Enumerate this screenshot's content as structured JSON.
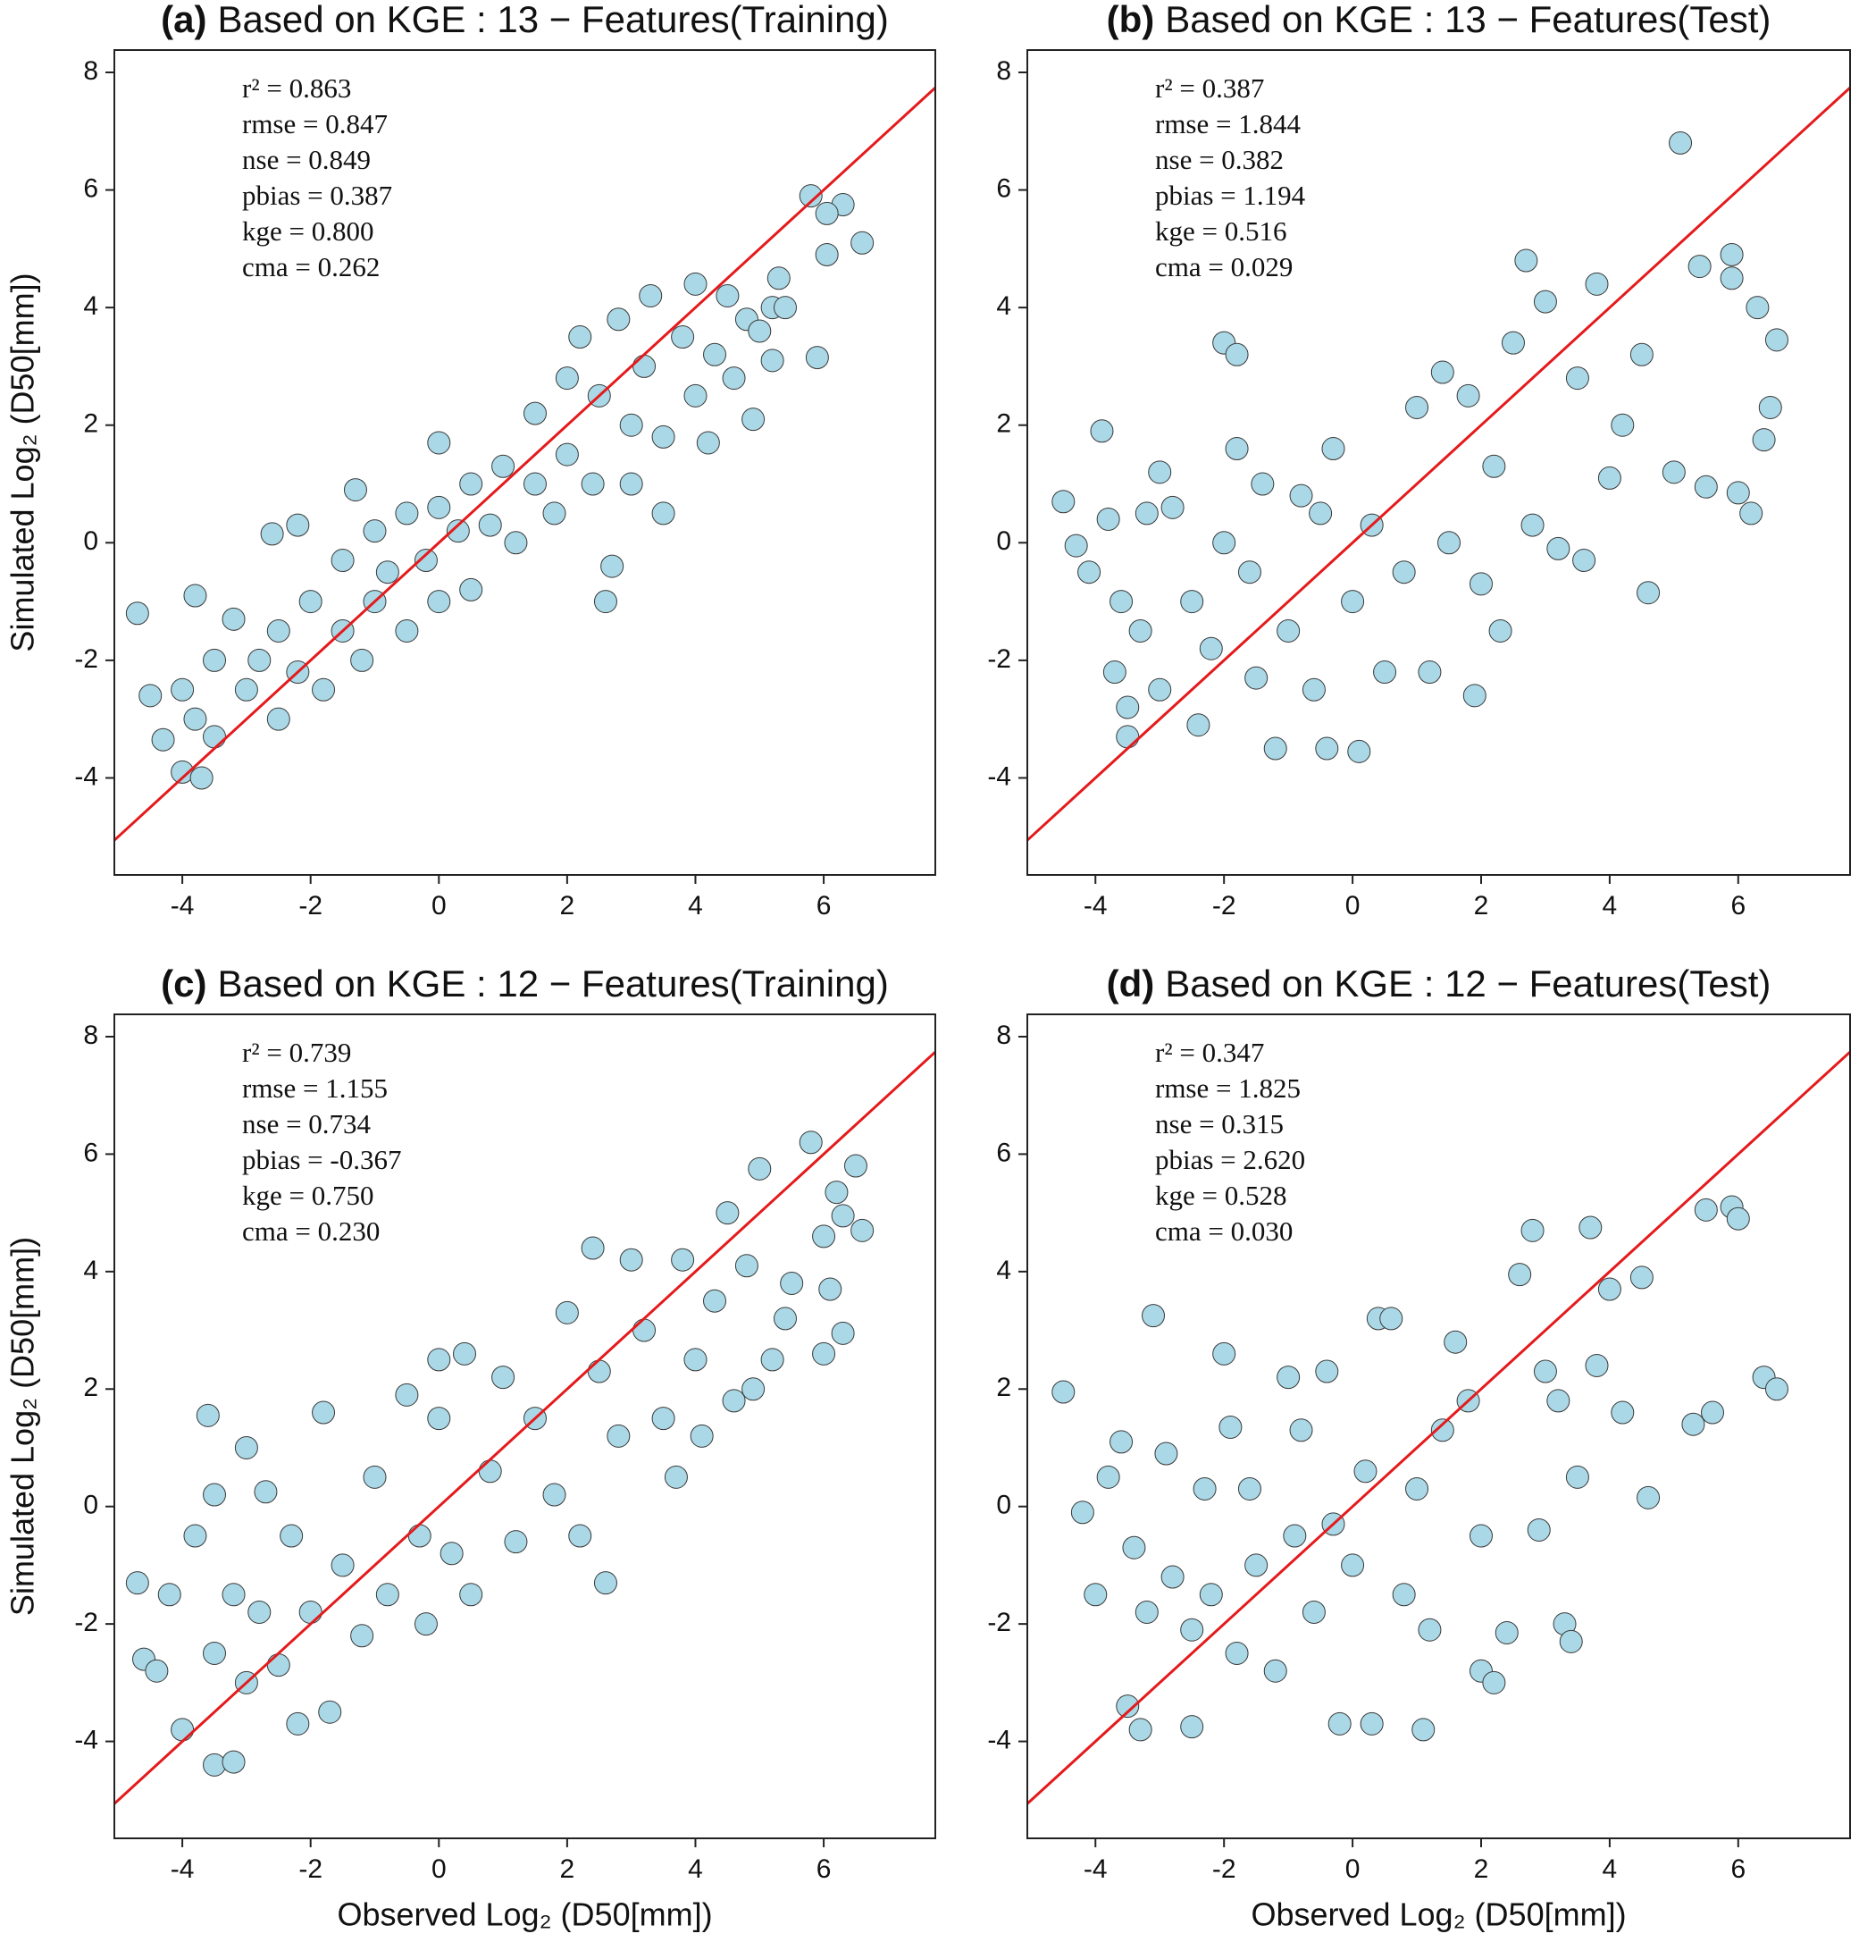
{
  "chart_data": [
    {
      "type": "scatter",
      "panel_label": "(a)",
      "title": "Based on KGE :  13 − Features(Training)",
      "ylabel": "Simulated Log₂ (D50[mm])",
      "annotations": [
        "r² = 0.863",
        "rmse = 0.847",
        "nse = 0.849",
        "pbias = 0.387",
        "kge = 0.800",
        "cma = 0.262"
      ],
      "color": "#aad8e6",
      "edge_color": "#3a3a3a",
      "diagonal_color": "#e41a1c",
      "xlim": [
        -5.06,
        7.74
      ],
      "ylim": [
        -5.65,
        8.38
      ],
      "xticks": [
        -4,
        -2,
        0,
        2,
        4,
        6
      ],
      "yticks": [
        -4,
        -2,
        0,
        2,
        4,
        6,
        8
      ],
      "x": [
        -4.7,
        -4.5,
        -4.3,
        -4,
        -3.7,
        -3.8,
        -2.6,
        -2.2,
        -1.3,
        0,
        2.6,
        2.7,
        3.5,
        5.8,
        6.3,
        6.05,
        6.05,
        6.6,
        5.9,
        4.9,
        5.3,
        5.2,
        -4,
        -3.8,
        -3.5,
        -3.5,
        -3.2,
        -3,
        -2.8,
        -2.5,
        -2.5,
        -2.2,
        -2,
        -1.8,
        -1.5,
        -1.5,
        -1.2,
        -1,
        -1,
        -0.8,
        -0.5,
        -0.5,
        -0.2,
        0,
        0,
        0.3,
        0.5,
        0.5,
        0.8,
        1,
        1.2,
        1.5,
        1.5,
        1.8,
        2,
        2,
        2.2,
        2.4,
        2.5,
        2.8,
        3,
        3,
        3.2,
        3.3,
        3.5,
        3.8,
        4,
        4,
        4.2,
        4.3,
        4.5,
        4.6,
        4.8,
        5,
        5.2,
        5.4
      ],
      "values": [
        -1.2,
        -2.6,
        -3.35,
        -3.9,
        -4.0,
        -0.9,
        0.15,
        0.3,
        0.9,
        1.7,
        -1.0,
        -0.4,
        0.5,
        5.9,
        5.75,
        5.6,
        4.9,
        5.1,
        3.15,
        2.1,
        4.5,
        3.1,
        -2.5,
        -3,
        -2,
        -3.3,
        -1.3,
        -2.5,
        -2,
        -1.5,
        -3,
        -2.2,
        -1,
        -2.5,
        -1.5,
        -0.3,
        -2,
        -1,
        0.2,
        -0.5,
        -1.5,
        0.5,
        -0.3,
        -1,
        0.6,
        0.2,
        -0.8,
        1,
        0.3,
        1.3,
        0,
        1,
        2.2,
        0.5,
        2.8,
        1.5,
        3.5,
        1,
        2.5,
        3.8,
        2,
        1,
        3,
        4.2,
        1.8,
        3.5,
        2.5,
        4.4,
        1.7,
        3.2,
        4.2,
        2.8,
        3.8,
        3.6,
        4,
        4.0
      ]
    },
    {
      "type": "scatter",
      "panel_label": "(b)",
      "title": "Based on KGE :  13 − Features(Test)",
      "annotations": [
        "r² = 0.387",
        "rmse = 1.844",
        "nse = 0.382",
        "pbias = 1.194",
        "kge = 0.516",
        "cma = 0.029"
      ],
      "color": "#aad8e6",
      "edge_color": "#3a3a3a",
      "diagonal_color": "#e41a1c",
      "xlim": [
        -5.06,
        7.74
      ],
      "ylim": [
        -5.65,
        8.38
      ],
      "xticks": [
        -4,
        -2,
        0,
        2,
        4,
        6
      ],
      "yticks": [
        -4,
        -2,
        0,
        2,
        4,
        6,
        8
      ],
      "x": [
        -4.5,
        -4.3,
        -4.1,
        -3.9,
        -3.8,
        -3.7,
        -3.6,
        -3.5,
        -3.5,
        -3.3,
        -3.2,
        -3,
        -3,
        -2.8,
        -2.5,
        -2.4,
        -2.2,
        -2,
        -1.8,
        -2,
        -1.8,
        -1.6,
        -1.5,
        -1.4,
        -1.2,
        -1,
        -0.8,
        -0.6,
        -0.5,
        -0.4,
        -0.3,
        0,
        0.1,
        0.3,
        0.5,
        0.8,
        1,
        1.2,
        1.4,
        1.5,
        1.8,
        1.9,
        2,
        2.2,
        2.3,
        2.5,
        2.7,
        2.8,
        3,
        3.2,
        3.5,
        3.6,
        3.8,
        4,
        4.2,
        4.6,
        4.5,
        5,
        5.1,
        5.4,
        5.5,
        5.9,
        5.9,
        6,
        6.2,
        6.3,
        6.4,
        6.6,
        6.5
      ],
      "values": [
        0.7,
        -0.05,
        -0.5,
        1.9,
        0.4,
        -2.2,
        -1,
        -3.3,
        -2.8,
        -1.5,
        0.5,
        1.2,
        -2.5,
        0.6,
        -1,
        -3.1,
        -1.8,
        3.4,
        3.2,
        0,
        1.6,
        -0.5,
        -2.3,
        1.0,
        -3.5,
        -1.5,
        0.8,
        -2.5,
        0.5,
        -3.5,
        1.6,
        -1,
        -3.55,
        0.3,
        -2.2,
        -0.5,
        2.3,
        -2.2,
        2.9,
        0,
        2.5,
        -2.6,
        -0.7,
        1.3,
        -1.5,
        3.4,
        4.8,
        0.3,
        4.1,
        -0.1,
        2.8,
        -0.3,
        4.4,
        1.1,
        2.0,
        -0.85,
        3.2,
        1.2,
        6.8,
        4.7,
        0.95,
        4.9,
        4.5,
        0.85,
        0.5,
        4.0,
        1.75,
        3.45,
        2.3
      ]
    },
    {
      "type": "scatter",
      "panel_label": "(c)",
      "title": "Based on KGE :  12 − Features(Training)",
      "ylabel": "Simulated Log₂ (D50[mm])",
      "xlabel": "Observed Log₂ (D50[mm])",
      "annotations": [
        "r² = 0.739",
        "rmse = 1.155",
        "nse = 0.734",
        "pbias = -0.367",
        "kge = 0.750",
        "cma = 0.230"
      ],
      "color": "#aad8e6",
      "edge_color": "#3a3a3a",
      "diagonal_color": "#e41a1c",
      "xlim": [
        -5.06,
        7.74
      ],
      "ylim": [
        -5.65,
        8.38
      ],
      "xticks": [
        -4,
        -2,
        0,
        2,
        4,
        6
      ],
      "yticks": [
        -4,
        -2,
        0,
        2,
        4,
        6,
        8
      ],
      "x": [
        -4.7,
        -4.6,
        -4.4,
        -4.2,
        -3.6,
        -3.5,
        -3.5,
        -3.2,
        -3,
        -2.7,
        -4,
        -3.8,
        -3.5,
        -3.2,
        -3,
        -2.8,
        -2.5,
        -2.3,
        -2.2,
        -2,
        -1.8,
        -1.7,
        -1.5,
        -1.2,
        -1,
        -0.8,
        -0.5,
        -0.3,
        -0.2,
        0,
        0,
        0.2,
        0.4,
        0.5,
        0.8,
        1,
        1.2,
        1.5,
        1.8,
        2,
        2.2,
        2.4,
        2.5,
        2.6,
        2.8,
        3,
        3.2,
        3.5,
        3.7,
        3.8,
        4,
        4.1,
        4.3,
        4.5,
        4.6,
        4.8,
        4.9,
        5,
        5.2,
        5.4,
        5.5,
        6,
        6,
        6.1,
        6.3,
        6.2,
        6.3,
        6.5,
        6.6,
        5.8
      ],
      "values": [
        -1.3,
        -2.6,
        -2.8,
        -1.5,
        1.55,
        0.2,
        -4.4,
        -4.35,
        1.0,
        0.25,
        -3.8,
        -0.5,
        -2.5,
        -1.5,
        -3,
        -1.8,
        -2.7,
        -0.5,
        -3.7,
        -1.8,
        1.6,
        -3.5,
        -1,
        -2.2,
        0.5,
        -1.5,
        1.9,
        -0.5,
        -2,
        1.5,
        2.5,
        -0.8,
        2.6,
        -1.5,
        0.6,
        2.2,
        -0.6,
        1.5,
        0.2,
        3.3,
        -0.5,
        4.4,
        2.3,
        -1.3,
        1.2,
        4.2,
        3,
        1.5,
        0.5,
        4.2,
        2.5,
        1.2,
        3.5,
        5.0,
        1.8,
        4.1,
        2,
        5.75,
        2.5,
        3.2,
        3.8,
        4.6,
        2.6,
        3.7,
        2.95,
        5.35,
        4.95,
        5.8,
        4.7,
        6.2
      ]
    },
    {
      "type": "scatter",
      "panel_label": "(d)",
      "title": "Based on KGE :  12 − Features(Test)",
      "xlabel": "Observed Log₂ (D50[mm])",
      "annotations": [
        "r² = 0.347",
        "rmse = 1.825",
        "nse = 0.315",
        "pbias = 2.620",
        "kge = 0.528",
        "cma = 0.030"
      ],
      "color": "#aad8e6",
      "edge_color": "#3a3a3a",
      "diagonal_color": "#e41a1c",
      "xlim": [
        -5.06,
        7.74
      ],
      "ylim": [
        -5.65,
        8.38
      ],
      "xticks": [
        -4,
        -2,
        0,
        2,
        4,
        6
      ],
      "yticks": [
        -4,
        -2,
        0,
        2,
        4,
        6,
        8
      ],
      "x": [
        -4.5,
        -4.2,
        -4,
        -3.8,
        -3.6,
        -3.5,
        -3.4,
        -3.3,
        -3.2,
        -3.1,
        -2.9,
        -2.8,
        -2.5,
        -2.5,
        -2.3,
        -2.2,
        -2,
        -1.9,
        -1.8,
        -1.6,
        -1.5,
        -1.2,
        -1,
        -0.9,
        -0.8,
        -0.6,
        -0.4,
        -0.3,
        -0.2,
        0,
        0.2,
        0.3,
        0.4,
        0.6,
        0.8,
        1,
        1.1,
        1.2,
        1.4,
        1.6,
        1.8,
        2,
        2,
        2.2,
        2.4,
        2.6,
        2.8,
        2.9,
        3,
        3.2,
        3.3,
        3.4,
        3.5,
        3.7,
        3.8,
        4,
        4.2,
        4.5,
        4.6,
        5.3,
        5.5,
        5.6,
        5.9,
        6,
        6.4,
        6.6
      ],
      "values": [
        1.95,
        -0.1,
        -1.5,
        0.5,
        1.1,
        -3.4,
        -0.7,
        -3.8,
        -1.8,
        3.25,
        0.9,
        -1.2,
        -3.75,
        -2.1,
        0.3,
        -1.5,
        2.6,
        1.35,
        -2.5,
        0.3,
        -1,
        -2.8,
        2.2,
        -0.5,
        1.3,
        -1.8,
        2.3,
        -0.3,
        -3.7,
        -1,
        0.6,
        -3.7,
        3.2,
        3.2,
        -1.5,
        0.3,
        -3.8,
        -2.1,
        1.3,
        2.8,
        1.8,
        -0.5,
        -2.8,
        -3,
        -2.15,
        3.95,
        4.7,
        -0.4,
        2.3,
        1.8,
        -2,
        -2.3,
        0.5,
        4.75,
        2.4,
        3.7,
        1.6,
        3.9,
        0.15,
        1.4,
        5.05,
        1.6,
        5.1,
        4.9,
        2.2,
        2.0
      ]
    }
  ]
}
